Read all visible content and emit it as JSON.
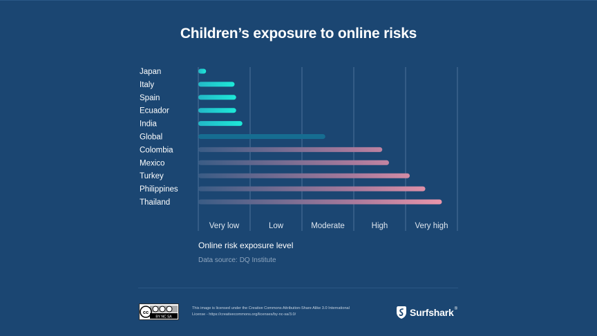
{
  "chart_data": {
    "type": "bar",
    "orientation": "horizontal",
    "title": "Children’s exposure to online risks",
    "categories": [
      "Japan",
      "Italy",
      "Spain",
      "Ecuador",
      "India",
      "Global",
      "Colombia",
      "Mexico",
      "Turkey",
      "Philippines",
      "Thailand"
    ],
    "values": [
      0.15,
      0.7,
      0.73,
      0.73,
      0.85,
      2.45,
      3.55,
      3.68,
      4.08,
      4.38,
      4.7
    ],
    "xlabel": "Online risk exposure level",
    "x_tick_labels": [
      "Very low",
      "Low",
      "Moderate",
      "High",
      "Very high"
    ],
    "xlim": [
      0,
      5
    ],
    "grid": true,
    "legend": "none",
    "highlight_category": "Global"
  },
  "source_label": "Data source:",
  "source_value": "DQ Institute",
  "license_text": "This image is licensed under the Creative Commons Attribution-Share Alike 3.0 International License - https://creativecommons.org/licenses/by-nc-sa/3.0/",
  "cc_badge_text": "BY  NC  SA",
  "brand": {
    "name": "Surfshark",
    "reg": "®"
  },
  "colors": {
    "background": "#1b4672",
    "gradient_start": "#1de9d8",
    "gradient_end": "#f397aa",
    "global_bar": "#166d91",
    "gridline": "#5c7fa4"
  }
}
